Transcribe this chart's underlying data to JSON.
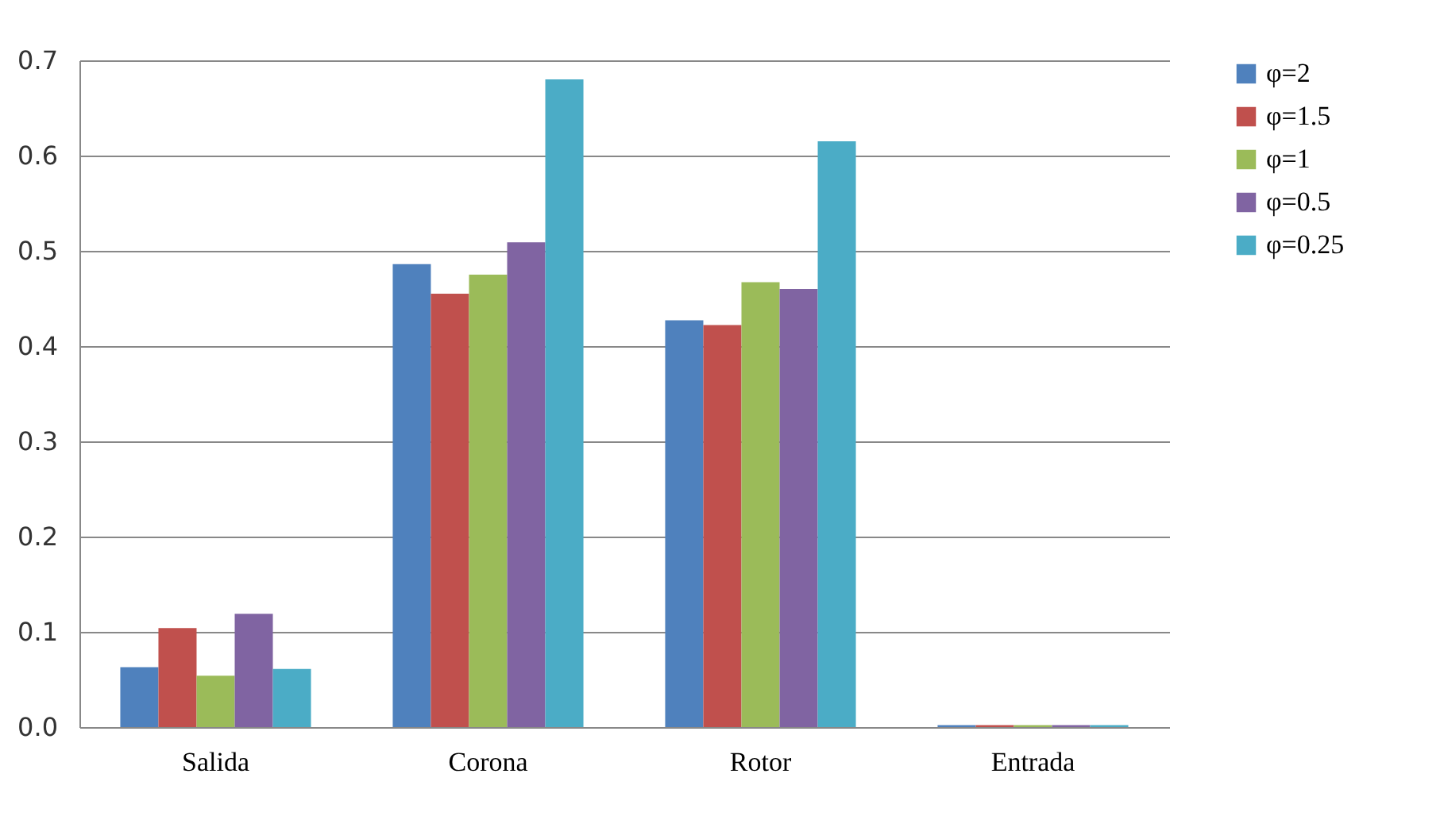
{
  "chart_data": {
    "type": "bar",
    "categories": [
      "Salida",
      "Corona",
      "Rotor",
      "Entrada"
    ],
    "series": [
      {
        "name": "φ=2",
        "color": "#4f81bd",
        "values": [
          0.063,
          0.486,
          0.427,
          0.002
        ]
      },
      {
        "name": "φ=1.5",
        "color": "#c0504d",
        "values": [
          0.104,
          0.455,
          0.422,
          0.002
        ]
      },
      {
        "name": "φ=1",
        "color": "#9bbb59",
        "values": [
          0.054,
          0.475,
          0.467,
          0.002
        ]
      },
      {
        "name": "φ=0.5",
        "color": "#8064a2",
        "values": [
          0.119,
          0.509,
          0.46,
          0.002
        ]
      },
      {
        "name": "φ=0.25",
        "color": "#4bacc6",
        "values": [
          0.061,
          0.68,
          0.615,
          0.002
        ]
      }
    ],
    "ylim": [
      0,
      0.7
    ],
    "yticks": [
      {
        "value": 0,
        "label": "0.0"
      },
      0.1,
      0.2,
      0.3,
      0.4,
      0.5,
      0.6,
      0.7
    ],
    "grid": "y",
    "legend": "right"
  }
}
